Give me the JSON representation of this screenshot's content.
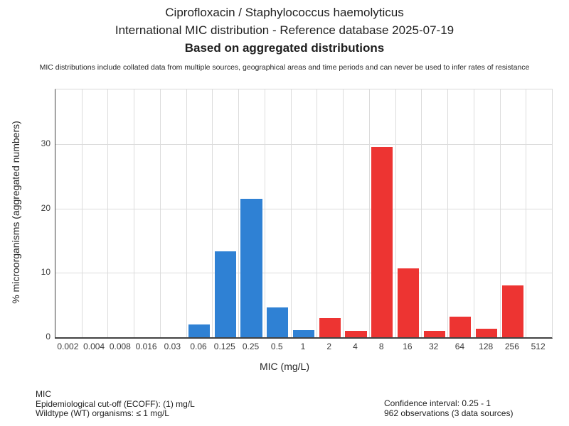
{
  "header": {
    "title_line1": "Ciprofloxacin / Staphylococcus haemolyticus",
    "title_line2": "International MIC distribution - Reference database 2025-07-19",
    "title_line3": "Based on aggregated distributions",
    "disclaimer": "MIC distributions include collated data from multiple sources, geographical areas and time periods and can never be used to infer rates of resistance"
  },
  "chart_data": {
    "type": "bar",
    "title": "Ciprofloxacin / Staphylococcus haemolyticus - International MIC distribution",
    "xlabel": "MIC (mg/L)",
    "ylabel": "% microorganisms (aggregated numbers)",
    "categories": [
      "0.002",
      "0.004",
      "0.008",
      "0.016",
      "0.03",
      "0.06",
      "0.125",
      "0.25",
      "0.5",
      "1",
      "2",
      "4",
      "8",
      "16",
      "32",
      "64",
      "128",
      "256",
      "512"
    ],
    "values": [
      0,
      0,
      0,
      0,
      0,
      2.0,
      13.3,
      21.5,
      4.6,
      1.1,
      3.0,
      1.0,
      29.6,
      10.7,
      1.0,
      3.2,
      1.3,
      8.0,
      0
    ],
    "bar_colors": [
      "",
      "",
      "",
      "",
      "",
      "#2f81d4",
      "#2f81d4",
      "#2f81d4",
      "#2f81d4",
      "#2f81d4",
      "#ed3432",
      "#ed3432",
      "#ed3432",
      "#ed3432",
      "#ed3432",
      "#ed3432",
      "#ed3432",
      "#ed3432",
      ""
    ],
    "wildtype_color": "#2f81d4",
    "non_wildtype_color": "#ed3432",
    "yticks": [
      0,
      10,
      20,
      30
    ],
    "ylim": [
      0,
      38.5
    ],
    "grid": true,
    "legend": false
  },
  "footer": {
    "left": [
      "MIC",
      "Epidemiological cut-off (ECOFF): (1) mg/L",
      "Wildtype (WT) organisms: ≤ 1 mg/L"
    ],
    "right": [
      "Confidence interval: 0.25 - 1",
      "962 observations (3 data sources)"
    ]
  }
}
